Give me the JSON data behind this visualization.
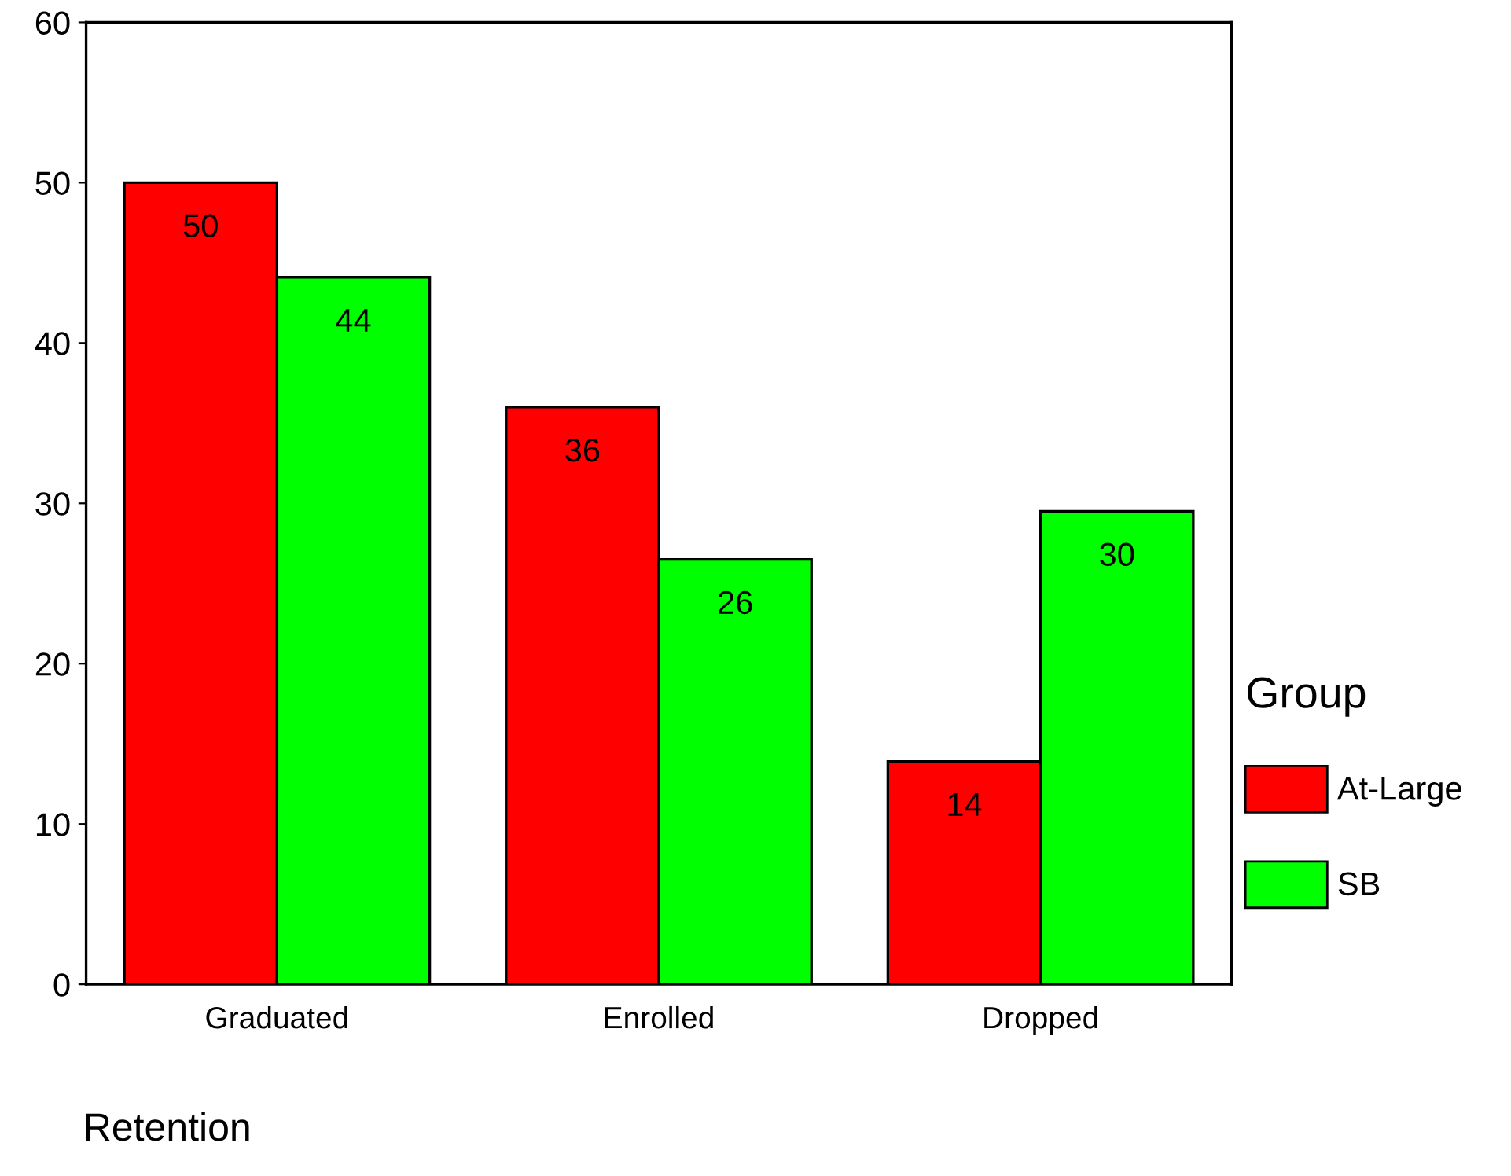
{
  "chart_data": {
    "type": "bar",
    "categories": [
      "Graduated",
      "Enrolled",
      "Dropped"
    ],
    "series": [
      {
        "name": "At-Large",
        "color": "#ff0000",
        "values": [
          50,
          36,
          13.9
        ],
        "value_labels": [
          "50",
          "36",
          "14"
        ]
      },
      {
        "name": "SB",
        "color": "#00ff00",
        "values": [
          44.1,
          26.5,
          29.5
        ],
        "value_labels": [
          "44",
          "26",
          "30"
        ]
      }
    ],
    "xlabel": "Retention",
    "legend_title": "Group",
    "legend": "right",
    "ylim": [
      0,
      60
    ],
    "yticks": [
      0,
      10,
      20,
      30,
      40,
      50,
      60
    ],
    "grid": false
  }
}
